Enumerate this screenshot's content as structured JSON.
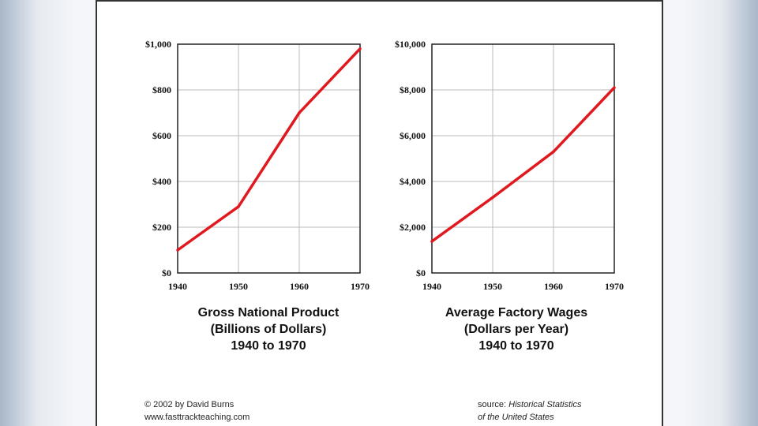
{
  "charts": [
    {
      "caption": [
        "Gross National Product",
        "(Billions of Dollars)",
        "1940 to 1970"
      ]
    },
    {
      "caption": [
        "Average Factory Wages",
        "(Dollars per Year)",
        "1940 to 1970"
      ]
    }
  ],
  "footer": {
    "copyright": "© 2002 by David Burns",
    "website": "www.fasttrackteaching.com",
    "source_label": "source:",
    "source_line1": "Historical Statistics",
    "source_line2": "of the United States"
  },
  "colors": {
    "line": "#e0191f",
    "grid": "#bbbbbb",
    "frame": "#222222"
  },
  "chart_data": [
    {
      "type": "line",
      "x": [
        1940,
        1950,
        1960,
        1970
      ],
      "xticks": [
        "1940",
        "1950",
        "1960",
        "1970"
      ],
      "yticks": [
        "$0",
        "$200",
        "$400",
        "$600",
        "$800",
        "$1,000"
      ],
      "ylim": [
        0,
        1000
      ],
      "xlim": [
        1940,
        1970
      ],
      "series": [
        {
          "values": [
            100,
            290,
            700,
            980
          ]
        }
      ],
      "grid": true
    },
    {
      "type": "line",
      "x": [
        1940,
        1950,
        1960,
        1970
      ],
      "xticks": [
        "1940",
        "1950",
        "1960",
        "1970"
      ],
      "yticks": [
        "$0",
        "$2,000",
        "$4,000",
        "$6,000",
        "$8,000",
        "$10,000"
      ],
      "ylim": [
        0,
        10000
      ],
      "xlim": [
        1940,
        1970
      ],
      "series": [
        {
          "values": [
            1380,
            3300,
            5300,
            8100
          ]
        }
      ],
      "grid": true
    }
  ]
}
